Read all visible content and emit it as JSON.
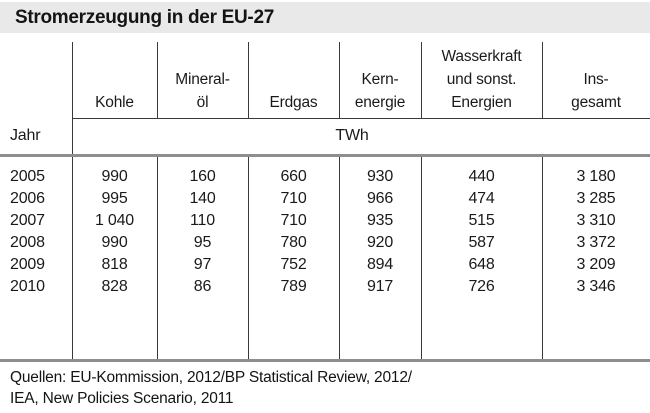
{
  "title": "Stromerzeugung in der EU-27",
  "table": {
    "row_header_label": "Jahr",
    "unit_label": "TWh",
    "columns": [
      "Kohle",
      "Mineral-\nöl",
      "Erdgas",
      "Kern-\nenergie",
      "Wasserkraft\nund sonst.\nEnergien",
      "Ins-\ngesamt"
    ],
    "rows": [
      {
        "year": "2005",
        "values": [
          "990",
          "160",
          "660",
          "930",
          "440",
          "3 180"
        ]
      },
      {
        "year": "2006",
        "values": [
          "995",
          "140",
          "710",
          "966",
          "474",
          "3 285"
        ]
      },
      {
        "year": "2007",
        "values": [
          "1 040",
          "110",
          "710",
          "935",
          "515",
          "3 310"
        ]
      },
      {
        "year": "2008",
        "values": [
          "990",
          "95",
          "780",
          "920",
          "587",
          "3 372"
        ]
      },
      {
        "year": "2009",
        "values": [
          "818",
          "97",
          "752",
          "894",
          "648",
          "3 209"
        ]
      },
      {
        "year": "2010",
        "values": [
          "828",
          "86",
          "789",
          "917",
          "726",
          "3 346"
        ]
      }
    ]
  },
  "source": {
    "line1": "Quellen: EU-Kommission, 2012/BP Statistical Review, 2012/",
    "line2": "IEA, New Policies Scenario, 2011"
  },
  "colors": {
    "title_bar_bg": "#e9e9e9",
    "thin_line": "#3a3a3a",
    "thick_line": "#8e8e8e",
    "text": "#1a1a1a",
    "background": "#ffffff"
  },
  "chart_data": {
    "type": "table",
    "title": "Stromerzeugung in der EU-27",
    "unit": "TWh",
    "x": [
      2005,
      2006,
      2007,
      2008,
      2009,
      2010
    ],
    "xlabel": "Jahr",
    "series": [
      {
        "name": "Kohle",
        "values": [
          990,
          995,
          1040,
          990,
          818,
          828
        ]
      },
      {
        "name": "Mineralöl",
        "values": [
          160,
          140,
          110,
          95,
          97,
          86
        ]
      },
      {
        "name": "Erdgas",
        "values": [
          660,
          710,
          710,
          780,
          752,
          789
        ]
      },
      {
        "name": "Kernenergie",
        "values": [
          930,
          966,
          935,
          920,
          894,
          917
        ]
      },
      {
        "name": "Wasserkraft und sonst. Energien",
        "values": [
          440,
          474,
          515,
          587,
          648,
          726
        ]
      },
      {
        "name": "Insgesamt",
        "values": [
          3180,
          3285,
          3310,
          3372,
          3209,
          3346
        ]
      }
    ],
    "source": "Quellen: EU-Kommission, 2012/BP Statistical Review, 2012/ IEA, New Policies Scenario, 2011"
  }
}
